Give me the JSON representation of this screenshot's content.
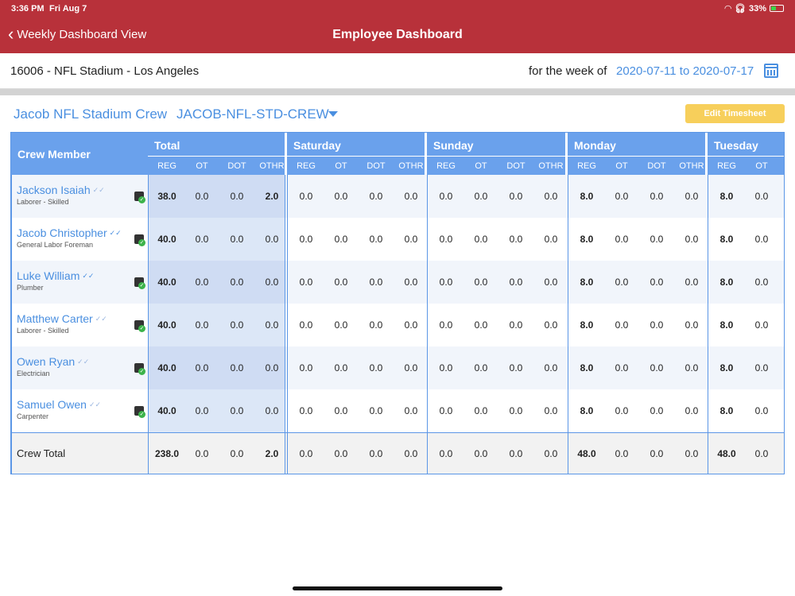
{
  "status_bar": {
    "time": "3:36 PM",
    "date": "Fri Aug 7",
    "battery": "33%"
  },
  "nav": {
    "back_label": "Weekly Dashboard View",
    "title": "Employee Dashboard"
  },
  "site": {
    "name": "16006 - NFL Stadium - Los Angeles",
    "week_label": "for the week of",
    "week_range": "2020-07-11 to 2020-07-17"
  },
  "crew": {
    "name": "Jacob NFL Stadium Crew",
    "code": "JACOB-NFL-STD-CREW",
    "edit_label": "Edit Timesheet"
  },
  "table": {
    "member_header": "Crew Member",
    "day_headers": [
      "Total",
      "Saturday",
      "Sunday",
      "Monday",
      "Tuesday"
    ],
    "sub_headers": [
      "REG",
      "OT",
      "DOT",
      "OTHR"
    ],
    "rows": [
      {
        "name": "Jackson Isaiah",
        "role": "Laborer - Skilled",
        "approved": false,
        "total": [
          "38.0",
          "0.0",
          "0.0",
          "2.0"
        ],
        "sat": [
          "0.0",
          "0.0",
          "0.0",
          "0.0"
        ],
        "sun": [
          "0.0",
          "0.0",
          "0.0",
          "0.0"
        ],
        "mon": [
          "8.0",
          "0.0",
          "0.0",
          "0.0"
        ],
        "tue": [
          "8.0",
          "0.0"
        ]
      },
      {
        "name": "Jacob Christopher",
        "role": "General Labor Foreman",
        "approved": true,
        "total": [
          "40.0",
          "0.0",
          "0.0",
          "0.0"
        ],
        "sat": [
          "0.0",
          "0.0",
          "0.0",
          "0.0"
        ],
        "sun": [
          "0.0",
          "0.0",
          "0.0",
          "0.0"
        ],
        "mon": [
          "8.0",
          "0.0",
          "0.0",
          "0.0"
        ],
        "tue": [
          "8.0",
          "0.0"
        ]
      },
      {
        "name": "Luke William",
        "role": "Plumber",
        "approved": true,
        "total": [
          "40.0",
          "0.0",
          "0.0",
          "0.0"
        ],
        "sat": [
          "0.0",
          "0.0",
          "0.0",
          "0.0"
        ],
        "sun": [
          "0.0",
          "0.0",
          "0.0",
          "0.0"
        ],
        "mon": [
          "8.0",
          "0.0",
          "0.0",
          "0.0"
        ],
        "tue": [
          "8.0",
          "0.0"
        ]
      },
      {
        "name": "Matthew Carter",
        "role": "Laborer - Skilled",
        "approved": false,
        "total": [
          "40.0",
          "0.0",
          "0.0",
          "0.0"
        ],
        "sat": [
          "0.0",
          "0.0",
          "0.0",
          "0.0"
        ],
        "sun": [
          "0.0",
          "0.0",
          "0.0",
          "0.0"
        ],
        "mon": [
          "8.0",
          "0.0",
          "0.0",
          "0.0"
        ],
        "tue": [
          "8.0",
          "0.0"
        ]
      },
      {
        "name": "Owen Ryan",
        "role": "Electrician",
        "approved": false,
        "total": [
          "40.0",
          "0.0",
          "0.0",
          "0.0"
        ],
        "sat": [
          "0.0",
          "0.0",
          "0.0",
          "0.0"
        ],
        "sun": [
          "0.0",
          "0.0",
          "0.0",
          "0.0"
        ],
        "mon": [
          "8.0",
          "0.0",
          "0.0",
          "0.0"
        ],
        "tue": [
          "8.0",
          "0.0"
        ]
      },
      {
        "name": "Samuel Owen",
        "role": "Carpenter",
        "approved": false,
        "total": [
          "40.0",
          "0.0",
          "0.0",
          "0.0"
        ],
        "sat": [
          "0.0",
          "0.0",
          "0.0",
          "0.0"
        ],
        "sun": [
          "0.0",
          "0.0",
          "0.0",
          "0.0"
        ],
        "mon": [
          "8.0",
          "0.0",
          "0.0",
          "0.0"
        ],
        "tue": [
          "8.0",
          "0.0"
        ]
      }
    ],
    "footer": {
      "label": "Crew Total",
      "total": [
        "238.0",
        "0.0",
        "0.0",
        "2.0"
      ],
      "sat": [
        "0.0",
        "0.0",
        "0.0",
        "0.0"
      ],
      "sun": [
        "0.0",
        "0.0",
        "0.0",
        "0.0"
      ],
      "mon": [
        "48.0",
        "0.0",
        "0.0",
        "0.0"
      ],
      "tue": [
        "48.0",
        "0.0"
      ]
    }
  }
}
